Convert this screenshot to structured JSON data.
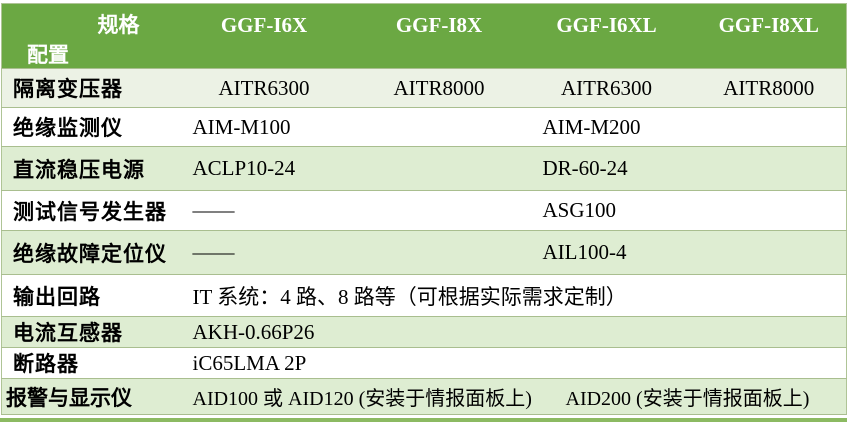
{
  "table": {
    "header": {
      "corner_top": "规格",
      "corner_bottom": "配置",
      "columns": [
        "GGF-I6X",
        "GGF-I8X",
        "GGF-I6XL",
        "GGF-I8XL"
      ]
    },
    "rows": [
      {
        "label": "隔离变压器",
        "cells": [
          "AITR6300",
          "AITR8000",
          "AITR6300",
          "AITR8000"
        ]
      },
      {
        "label": "绝缘监测仪",
        "cells": [
          "AIM-M100",
          "AIM-M200"
        ]
      },
      {
        "label": "直流稳压电源",
        "cells": [
          "ACLP10-24",
          "DR-60-24"
        ]
      },
      {
        "label": "测试信号发生器",
        "cells": [
          "——",
          "ASG100"
        ]
      },
      {
        "label": "绝缘故障定位仪",
        "cells": [
          "——",
          "AIL100-4"
        ]
      },
      {
        "label": "输出回路",
        "cells": [
          "IT 系统：4 路、8 路等（可根据实际需求定制）"
        ]
      },
      {
        "label": "电流互感器",
        "cells": [
          "AKH-0.66P26"
        ]
      },
      {
        "label": "断路器",
        "cells": [
          "iC65LMA 2P"
        ]
      },
      {
        "label": "报警与显示仪",
        "cells": [
          "AID100 或 AID120 (安装于情报面板上)",
          "AID200 (安装于情报面板上)"
        ]
      }
    ]
  },
  "colors": {
    "header_bg": "#6BA843",
    "header_text": "#FFFFFF",
    "row_stripe_green": "#DEEDD2",
    "row_stripe_pale": "#ECF2E5",
    "row_white": "#FFFFFF",
    "grid_border": "#A9BE8F",
    "bottom_bar": "#8CBA62",
    "body_text": "#000000"
  }
}
